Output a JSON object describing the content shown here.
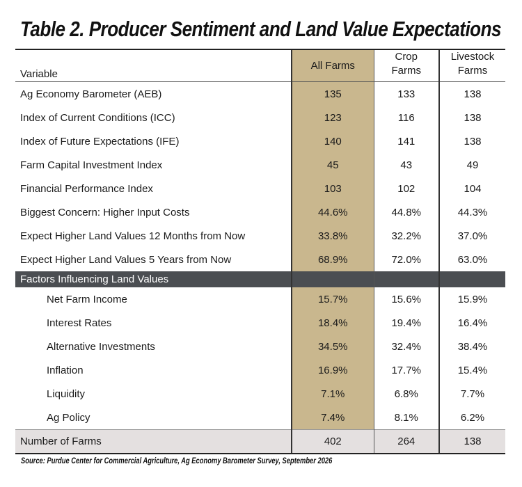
{
  "title": "Table 2.  Producer Sentiment and Land Value Expectations",
  "columns": {
    "variable": "Variable",
    "all_farms": "All Farms",
    "crop_farms_1": "Crop",
    "crop_farms_2": "Farms",
    "livestock_farms_1": "Livestock",
    "livestock_farms_2": "Farms"
  },
  "rows": [
    {
      "label": "Ag Economy Barometer (AEB)",
      "all": "135",
      "crop": "133",
      "livestock": "138"
    },
    {
      "label": "Index of Current Conditions (ICC)",
      "all": "123",
      "crop": "116",
      "livestock": "138"
    },
    {
      "label": "Index of Future Expectations (IFE)",
      "all": "140",
      "crop": "141",
      "livestock": "138"
    },
    {
      "label": "Farm Capital Investment Index",
      "all": "45",
      "crop": "43",
      "livestock": "49"
    },
    {
      "label": "Financial Performance Index",
      "all": "103",
      "crop": "102",
      "livestock": "104"
    },
    {
      "label": "Biggest Concern: Higher Input Costs",
      "all": "44.6%",
      "crop": "44.8%",
      "livestock": "44.3%"
    },
    {
      "label": "Expect Higher Land Values 12 Months from Now",
      "all": "33.8%",
      "crop": "32.2%",
      "livestock": "37.0%"
    },
    {
      "label": "Expect Higher Land Values 5 Years from Now",
      "all": "68.9%",
      "crop": "72.0%",
      "livestock": "63.0%"
    }
  ],
  "section": {
    "label": "Factors Influencing Land Values"
  },
  "factors": [
    {
      "label": "Net Farm Income",
      "all": "15.7%",
      "crop": "15.6%",
      "livestock": "15.9%"
    },
    {
      "label": "Interest Rates",
      "all": "18.4%",
      "crop": "19.4%",
      "livestock": "16.4%"
    },
    {
      "label": "Alternative Investments",
      "all": "34.5%",
      "crop": "32.4%",
      "livestock": "38.4%"
    },
    {
      "label": "Inflation",
      "all": "16.9%",
      "crop": "17.7%",
      "livestock": "15.4%"
    },
    {
      "label": "Liquidity",
      "all": "7.1%",
      "crop": "6.8%",
      "livestock": "7.7%"
    },
    {
      "label": "Ag Policy",
      "all": "7.4%",
      "crop": "8.1%",
      "livestock": "6.2%"
    }
  ],
  "total": {
    "label": "Number of Farms",
    "all": "402",
    "crop": "264",
    "livestock": "138"
  },
  "source": "Source: Purdue Center for Commercial Agriculture, Ag Economy Barometer Survey, September 2026",
  "colors": {
    "all_farms_highlight": "#c9b78e",
    "section_band": "#4b4e52",
    "total_band": "#e4e0e0"
  }
}
